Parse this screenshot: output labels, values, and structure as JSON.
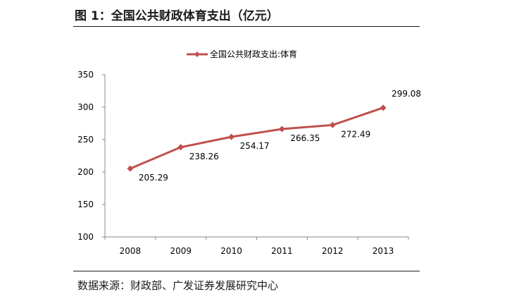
{
  "figure": {
    "title": "图 1：全国公共财政体育支出（亿元）",
    "source": "数据来源：财政部、广发证券发展研究中心"
  },
  "chart_data": {
    "type": "line",
    "title": "",
    "xlabel": "",
    "ylabel": "",
    "categories": [
      "2008",
      "2009",
      "2010",
      "2011",
      "2012",
      "2013"
    ],
    "series": [
      {
        "name": "全国公共财政支出:体育",
        "values": [
          205.29,
          238.26,
          254.17,
          266.35,
          272.49,
          299.08
        ],
        "labels": [
          "205.29",
          "238.26",
          "254.17",
          "266.35",
          "272.49",
          "299.08"
        ],
        "color": "#c0504d",
        "marker": "diamond"
      }
    ],
    "ylim": [
      100,
      350
    ],
    "yticks": [
      "100",
      "150",
      "200",
      "250",
      "300",
      "350"
    ],
    "grid": false,
    "legend": "top"
  }
}
